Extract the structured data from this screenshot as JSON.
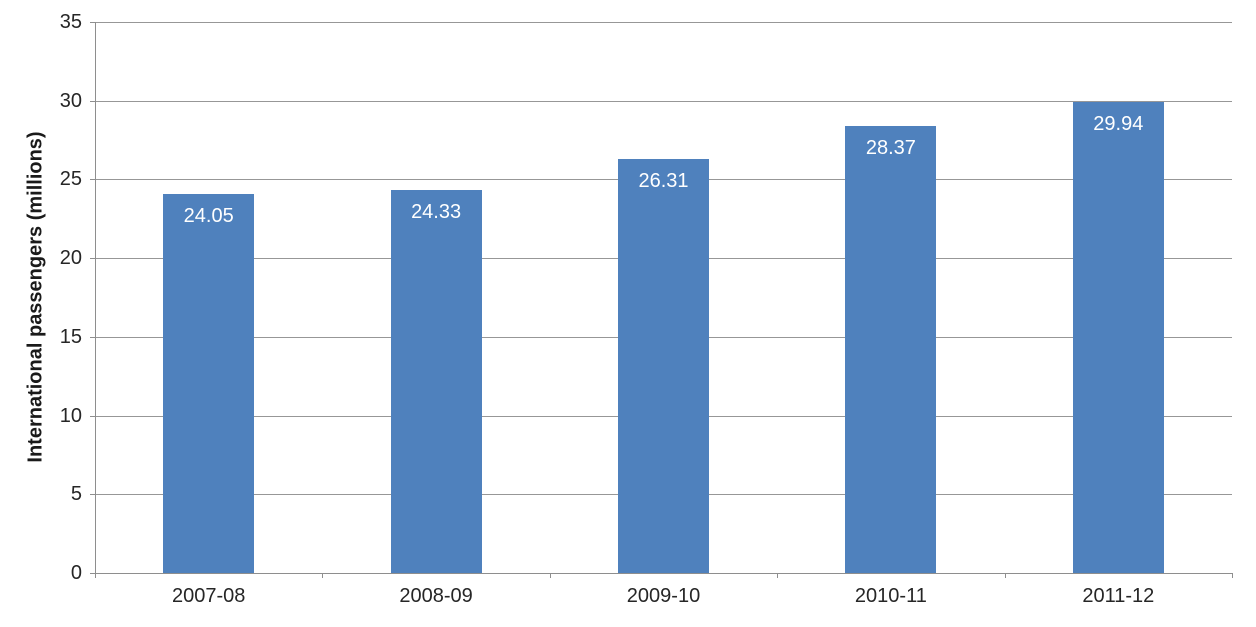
{
  "chart_data": {
    "type": "bar",
    "title": "",
    "categories": [
      "2007-08",
      "2008-09",
      "2009-10",
      "2010-11",
      "2011-12"
    ],
    "values": [
      24.05,
      24.33,
      26.31,
      28.37,
      29.94
    ],
    "data_labels": [
      "24.05",
      "24.33",
      "26.31",
      "28.37",
      "29.94"
    ],
    "xlabel": "",
    "ylabel": "International passengers (millions)",
    "ylim": [
      0,
      35
    ],
    "yticks": [
      0,
      5,
      10,
      15,
      20,
      25,
      30,
      35
    ],
    "ytick_labels": [
      "0",
      "5",
      "10",
      "15",
      "20",
      "25",
      "30",
      "35"
    ],
    "grid": "horizontal",
    "legend": "none",
    "data_label_position": "inside-end",
    "colors": {
      "bar_fill": "#4f81bd",
      "data_label_text": "#ffffff",
      "gridline": "#979797",
      "axis_line": "#8e8e8e",
      "tick_label_text": "#262626",
      "axis_title_text": "#1a1a1a",
      "background": "#ffffff"
    }
  }
}
